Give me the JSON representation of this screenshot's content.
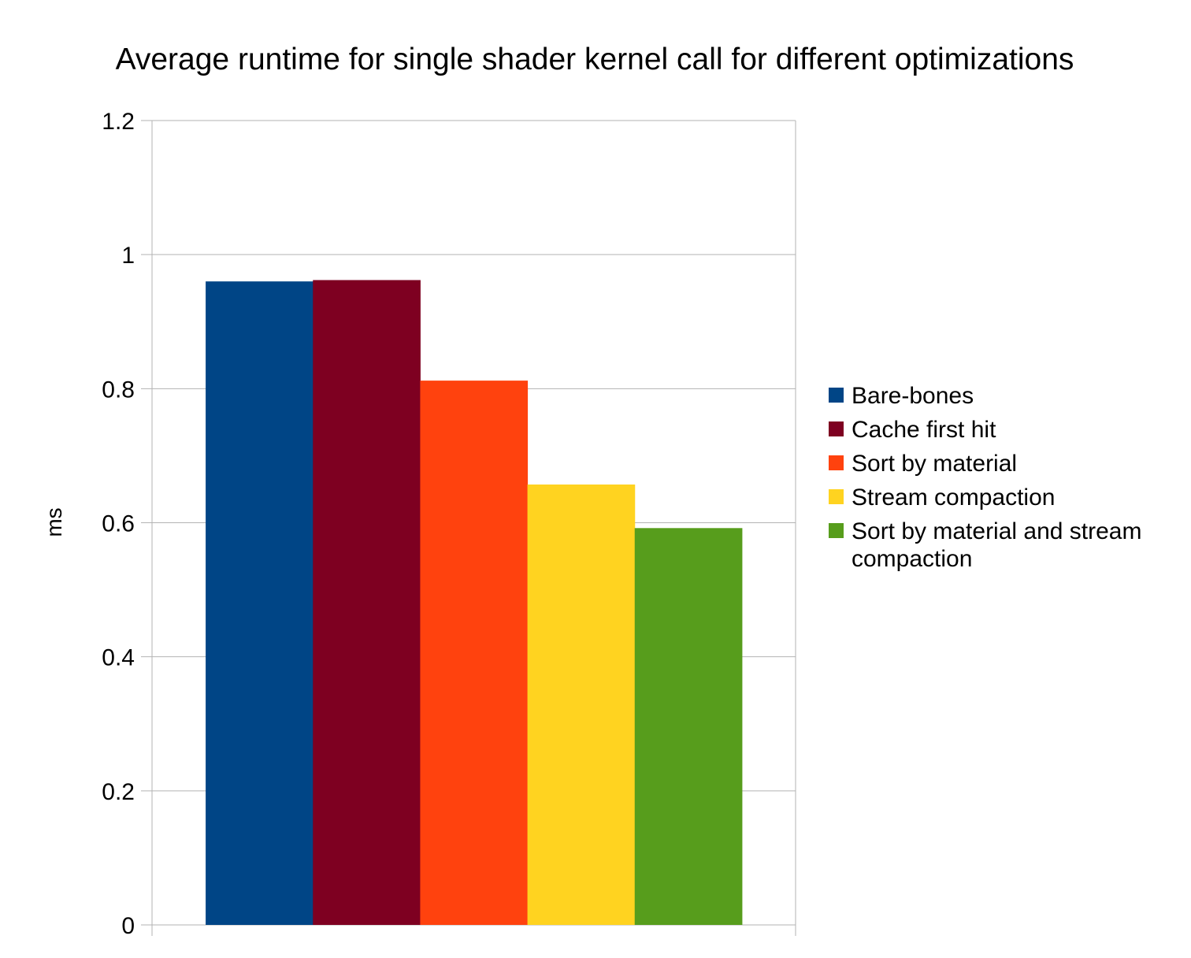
{
  "chart_data": {
    "type": "bar",
    "title": "Average runtime for single shader kernel call for different optimizations",
    "ylabel": "ms",
    "xlabel": "",
    "ylim": [
      0,
      1.2
    ],
    "yticks": [
      "0",
      "0.2",
      "0.4",
      "0.6",
      "0.8",
      "1",
      "1.2"
    ],
    "grid": true,
    "legend_position": "right",
    "series": [
      {
        "name": "Bare-bones",
        "values": [
          0.96
        ],
        "color": "#004586"
      },
      {
        "name": "Cache first hit",
        "values": [
          0.962
        ],
        "color": "#7e0021"
      },
      {
        "name": "Sort by material",
        "values": [
          0.812
        ],
        "color": "#ff420e"
      },
      {
        "name": "Stream compaction",
        "values": [
          0.657
        ],
        "color": "#ffd320"
      },
      {
        "name": "Sort by material and stream compaction",
        "values": [
          0.592
        ],
        "color": "#579d1c"
      }
    ]
  }
}
